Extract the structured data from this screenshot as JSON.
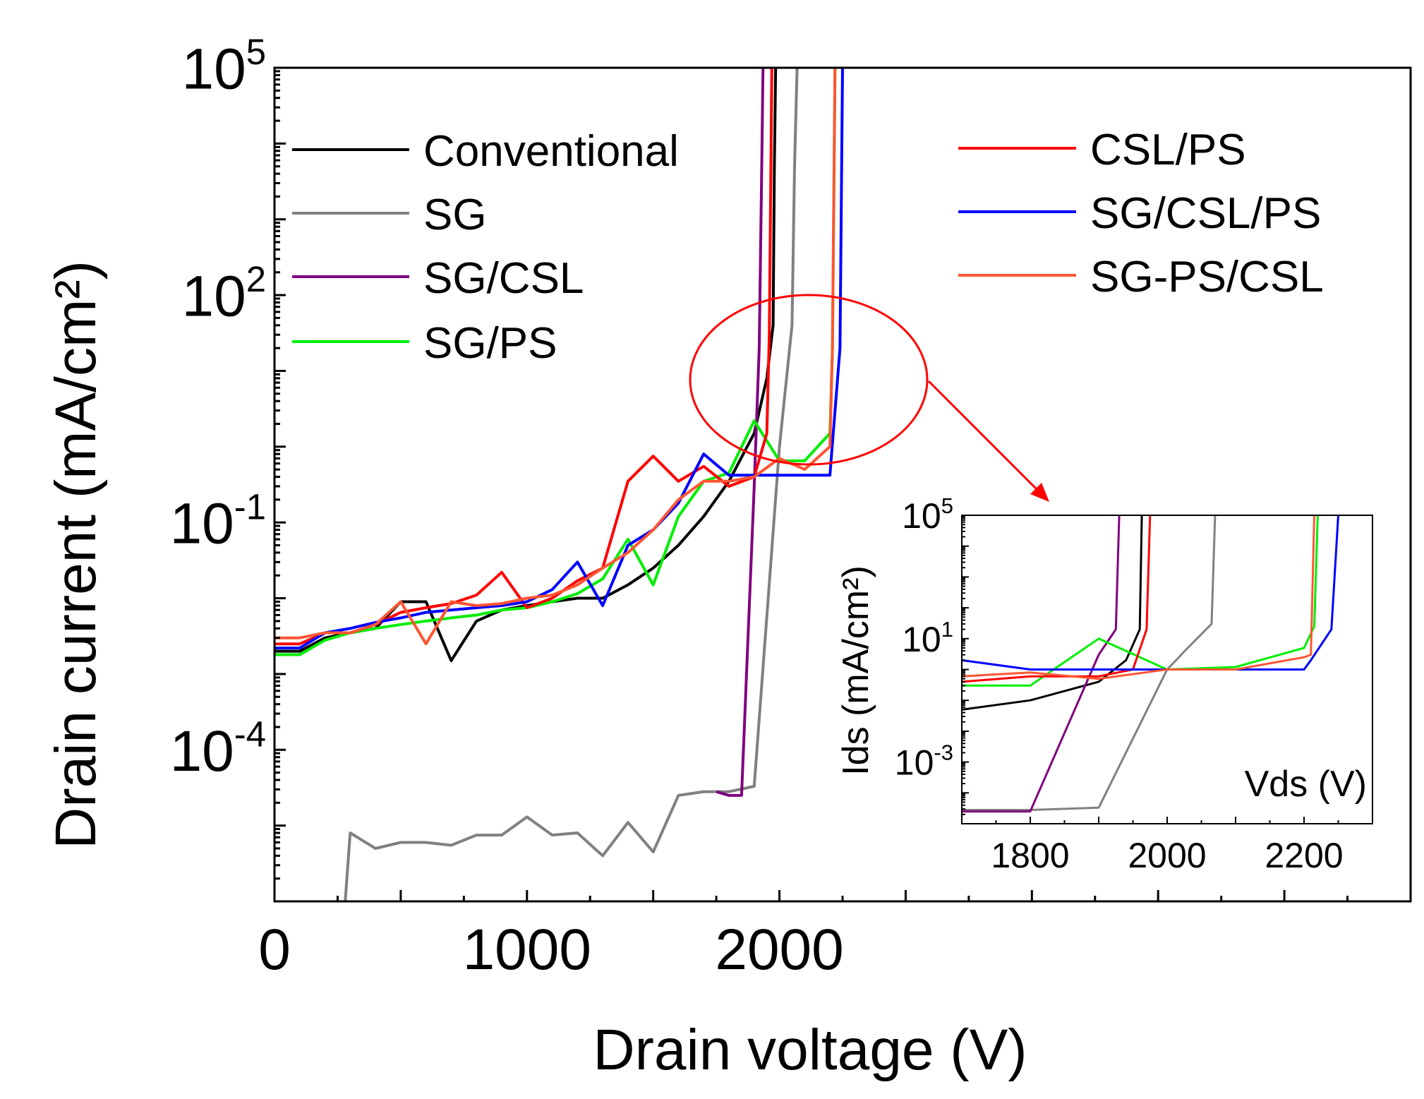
{
  "chart_data": [
    {
      "id": "main",
      "type": "line",
      "xlabel": "Drain voltage (V)",
      "ylabel": "Drain current (mA/cm²)",
      "yscale": "log",
      "xlim": [
        0,
        4500
      ],
      "ylim": [
        1e-06,
        100000
      ],
      "x_ticks": [
        {
          "value": 0,
          "label": "0"
        },
        {
          "value": 1000,
          "label": "1000"
        },
        {
          "value": 2000,
          "label": "2000"
        }
      ],
      "y_ticks": [
        {
          "value": 0.0001,
          "base": "10",
          "exp": "-4"
        },
        {
          "value": 0.1,
          "base": "10",
          "exp": "-1"
        },
        {
          "value": 100,
          "base": "10",
          "exp": "2"
        },
        {
          "value": 100000,
          "base": "10",
          "exp": "5"
        }
      ],
      "series": [
        {
          "name": "Conventional",
          "color": "#000000",
          "x": [
            0,
            100,
            200,
            300,
            400,
            500,
            600,
            700,
            800,
            900,
            1000,
            1100,
            1200,
            1300,
            1400,
            1500,
            1600,
            1700,
            1800,
            1900,
            1950,
            1975,
            1980,
            1985
          ],
          "y": [
            0.002,
            0.002,
            0.003,
            0.0035,
            0.004,
            0.009,
            0.009,
            0.0015,
            0.005,
            0.007,
            0.008,
            0.009,
            0.01,
            0.01,
            0.015,
            0.025,
            0.05,
            0.12,
            0.35,
            1.5,
            8,
            40,
            5000,
            100000
          ]
        },
        {
          "name": "SG",
          "color": "#808080",
          "x": [
            280,
            300,
            400,
            500,
            600,
            700,
            800,
            900,
            1000,
            1100,
            1200,
            1300,
            1400,
            1500,
            1600,
            1700,
            1800,
            1900,
            2000,
            2050,
            2060,
            2070
          ],
          "y": [
            1e-06,
            8e-06,
            5e-06,
            6e-06,
            6e-06,
            5.5e-06,
            7.5e-06,
            7.5e-06,
            1.3e-05,
            7.5e-06,
            8e-06,
            4e-06,
            1.1e-05,
            4.5e-06,
            2.5e-05,
            2.8e-05,
            2.8e-05,
            3.3e-05,
            1,
            40,
            5000,
            100000
          ]
        },
        {
          "name": "SG/CSL",
          "color": "#800080",
          "x": [
            1750,
            1800,
            1850,
            1900,
            1920,
            1930,
            1935
          ],
          "y": [
            2.8e-05,
            2.5e-05,
            2.5e-05,
            0.3,
            20,
            5000,
            100000
          ]
        },
        {
          "name": "SG/PS",
          "color": "#00ee00",
          "x": [
            0,
            100,
            200,
            300,
            400,
            500,
            600,
            700,
            800,
            900,
            1000,
            1100,
            1200,
            1300,
            1400,
            1500,
            1600,
            1700,
            1800,
            1900,
            2000,
            2100,
            2200,
            2210,
            2220
          ],
          "y": [
            0.0018,
            0.0018,
            0.0028,
            0.0035,
            0.004,
            0.0045,
            0.005,
            0.0055,
            0.006,
            0.007,
            0.0075,
            0.009,
            0.0115,
            0.018,
            0.06,
            0.015,
            0.12,
            0.35,
            0.45,
            2.2,
            0.65,
            0.65,
            1.5,
            20,
            100000
          ]
        },
        {
          "name": "CSL/PS",
          "color": "#ff0000",
          "x": [
            0,
            100,
            200,
            300,
            400,
            500,
            600,
            700,
            800,
            900,
            1000,
            1100,
            1200,
            1300,
            1400,
            1500,
            1600,
            1700,
            1800,
            1900,
            1950,
            1960,
            1970
          ],
          "y": [
            0.0025,
            0.0025,
            0.0035,
            0.0035,
            0.0045,
            0.0065,
            0.0075,
            0.0085,
            0.011,
            0.022,
            0.0075,
            0.01,
            0.017,
            0.025,
            0.35,
            0.75,
            0.35,
            0.55,
            0.3,
            0.4,
            1.5,
            30,
            100000
          ]
        },
        {
          "name": "SG/CSL/PS",
          "color": "#0000ff",
          "x": [
            0,
            100,
            200,
            300,
            400,
            500,
            600,
            700,
            800,
            900,
            1000,
            1100,
            1200,
            1300,
            1400,
            1500,
            1600,
            1700,
            1800,
            1900,
            2000,
            2100,
            2200,
            2240,
            2250
          ],
          "y": [
            0.0022,
            0.0022,
            0.0035,
            0.004,
            0.0048,
            0.0055,
            0.0065,
            0.007,
            0.0075,
            0.008,
            0.009,
            0.013,
            0.03,
            0.008,
            0.05,
            0.08,
            0.18,
            0.8,
            0.42,
            0.42,
            0.42,
            0.42,
            0.42,
            20,
            100000
          ]
        },
        {
          "name": "SG-PS/CSL",
          "color": "#ff5533",
          "x": [
            0,
            100,
            200,
            300,
            400,
            500,
            600,
            700,
            800,
            900,
            1000,
            1100,
            1200,
            1300,
            1400,
            1500,
            1600,
            1700,
            1800,
            1900,
            2000,
            2100,
            2200,
            2210,
            2220
          ],
          "y": [
            0.003,
            0.003,
            0.0035,
            0.0035,
            0.0045,
            0.009,
            0.0025,
            0.009,
            0.008,
            0.0085,
            0.01,
            0.011,
            0.015,
            0.025,
            0.04,
            0.08,
            0.2,
            0.35,
            0.35,
            0.4,
            0.7,
            0.5,
            1.0,
            20,
            100000
          ]
        }
      ],
      "annotation": {
        "type": "ellipse",
        "color": "#ff0000",
        "note": "highlight of breakdown region"
      }
    },
    {
      "id": "inset",
      "type": "line",
      "xlabel": "Vds (V)",
      "ylabel": "Ids (mA/cm²)",
      "yscale": "log",
      "xlim": [
        1700,
        2300
      ],
      "ylim": [
        1e-05,
        100000
      ],
      "x_ticks": [
        {
          "value": 1800,
          "label": "1800"
        },
        {
          "value": 2000,
          "label": "2000"
        },
        {
          "value": 2200,
          "label": "2200"
        }
      ],
      "y_ticks": [
        {
          "value": 0.001,
          "base": "10",
          "exp": "-3"
        },
        {
          "value": 10,
          "base": "10",
          "exp": "1"
        },
        {
          "value": 100000,
          "base": "10",
          "exp": "5"
        }
      ],
      "series": [
        {
          "name": "Conventional",
          "color": "#000000",
          "x": [
            1700,
            1800,
            1900,
            1940,
            1960,
            1963
          ],
          "y": [
            0.05,
            0.1,
            0.4,
            2,
            20,
            100000
          ]
        },
        {
          "name": "SG",
          "color": "#808080",
          "x": [
            1700,
            1800,
            1900,
            2000,
            2030,
            2065,
            2070
          ],
          "y": [
            2.8e-05,
            2.8e-05,
            3.3e-05,
            1,
            5,
            30,
            100000
          ]
        },
        {
          "name": "SG/CSL",
          "color": "#800080",
          "x": [
            1700,
            1800,
            1900,
            1925,
            1930
          ],
          "y": [
            2.5e-05,
            2.5e-05,
            3,
            20,
            100000
          ]
        },
        {
          "name": "SG/PS",
          "color": "#00ee00",
          "x": [
            1700,
            1800,
            1900,
            2000,
            2100,
            2200,
            2215,
            2220
          ],
          "y": [
            0.3,
            0.3,
            10,
            1,
            1.2,
            5,
            25,
            100000
          ]
        },
        {
          "name": "CSL/PS",
          "color": "#ff0000",
          "x": [
            1700,
            1800,
            1900,
            1950,
            1970,
            1975
          ],
          "y": [
            0.4,
            0.6,
            0.6,
            1,
            20,
            100000
          ]
        },
        {
          "name": "SG/CSL/PS",
          "color": "#0000ff",
          "x": [
            1700,
            1800,
            1900,
            2000,
            2100,
            2200,
            2210,
            2240,
            2250
          ],
          "y": [
            2,
            1,
            1,
            1,
            1,
            1,
            2,
            20,
            100000
          ]
        },
        {
          "name": "SG-PS/CSL",
          "color": "#ff5533",
          "x": [
            1700,
            1800,
            1900,
            2000,
            2100,
            2200,
            2210,
            2215
          ],
          "y": [
            0.6,
            0.8,
            0.5,
            1,
            1,
            2.5,
            3,
            100000
          ]
        }
      ]
    }
  ]
}
